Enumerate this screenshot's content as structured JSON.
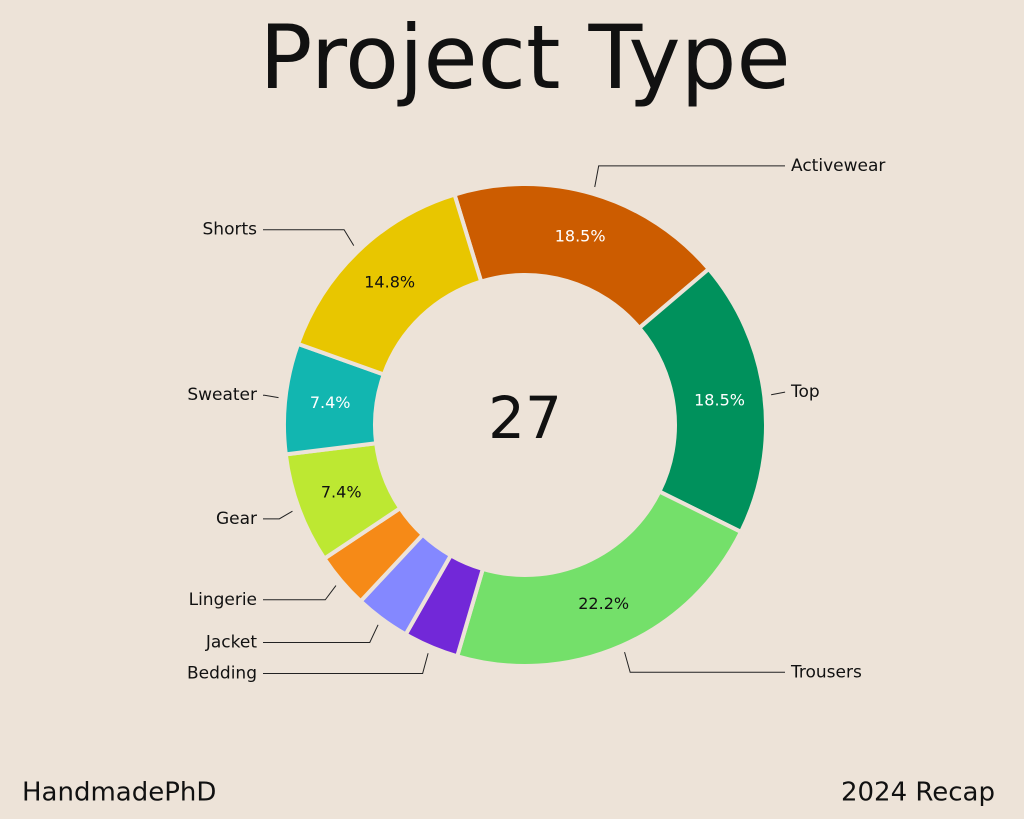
{
  "chart_data": {
    "type": "donut",
    "title": "Project Type",
    "categories": [
      "Activewear",
      "Top",
      "Trousers",
      "Bedding",
      "Jacket",
      "Lingerie",
      "Gear",
      "Sweater",
      "Shorts"
    ],
    "values": [
      18.5,
      18.5,
      22.2,
      3.7,
      3.7,
      3.7,
      7.4,
      7.4,
      14.8
    ],
    "value_labels": [
      "18.5%",
      "18.5%",
      "22.2%",
      null,
      null,
      null,
      "7.4%",
      "7.4%",
      "14.8%"
    ],
    "colors": [
      "#cc5c00",
      "#00915c",
      "#74e06a",
      "#7228d8",
      "#8488ff",
      "#f68a17",
      "#bde832",
      "#12b6b0",
      "#e8c600"
    ],
    "total": 27
  },
  "footer": {
    "left": "HandmadePhD",
    "right": "2024 Recap"
  }
}
